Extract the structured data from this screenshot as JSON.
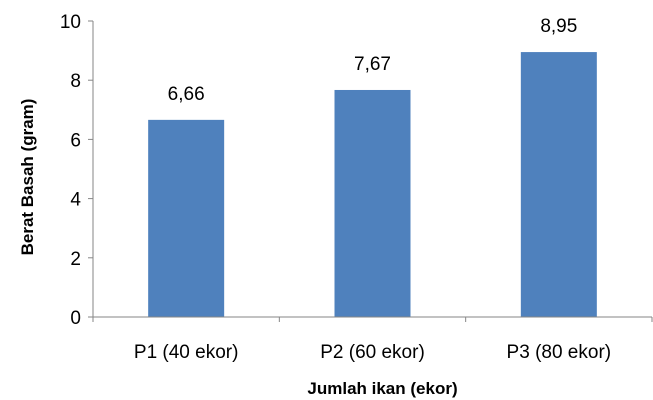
{
  "chart_data": {
    "type": "bar",
    "categories": [
      "P1 (40 ekor)",
      "P2 (60 ekor)",
      "P3 (80 ekor)"
    ],
    "values": [
      6.66,
      7.67,
      8.95
    ],
    "value_labels": [
      "6,66",
      "7,67",
      "8,95"
    ],
    "title": "",
    "xlabel": "Jumlah ikan (ekor)",
    "ylabel": "Berat Basah (gram)",
    "ylim": [
      0,
      10
    ],
    "yticks": [
      0,
      2,
      4,
      6,
      8,
      10
    ],
    "ytick_labels": [
      "0",
      "2",
      "4",
      "6",
      "8",
      "10"
    ],
    "grid": false,
    "legend": "none",
    "bar_color": "#4F81BD"
  }
}
